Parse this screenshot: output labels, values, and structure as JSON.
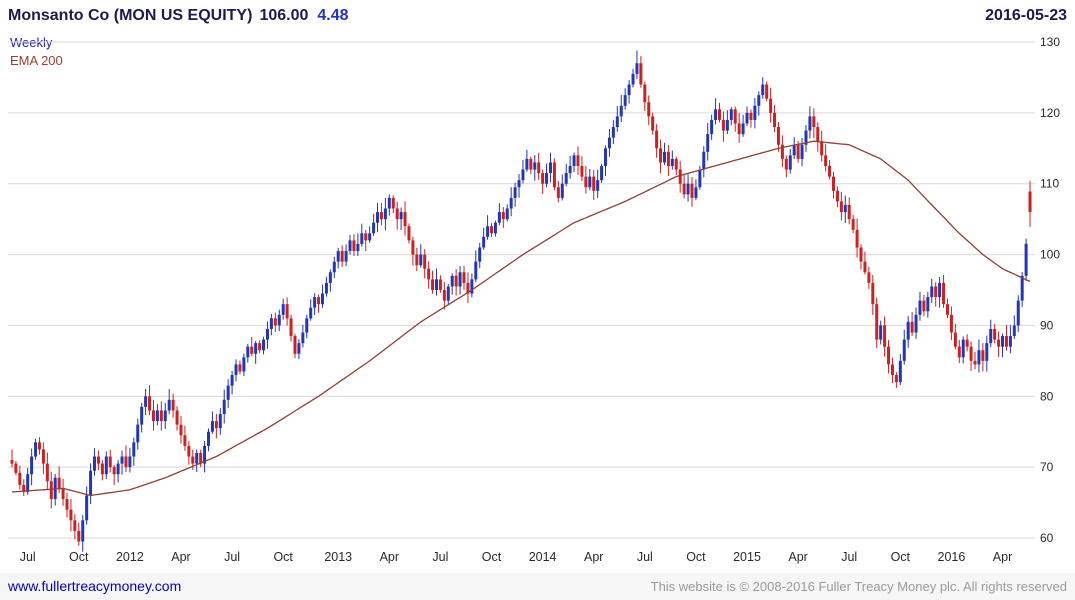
{
  "header": {
    "instrument": "Monsanto Co (MON US EQUITY)",
    "last_price": "106.00",
    "change": "4.48",
    "date": "2016-05-23"
  },
  "legend": {
    "series1": "Weekly",
    "series2": "EMA 200"
  },
  "footer": {
    "link": "www.fullertreacymoney.com",
    "copyright": "This website is © 2008-2016 Fuller Treacy Money plc. All rights reserved"
  },
  "colors": {
    "up": "#2136b8",
    "down": "#cf2020",
    "ema": "#8f3f34",
    "grid": "#d9d9d9",
    "axis_text": "#2a2a2a",
    "title": "#1b1b4f",
    "change": "#2233cc",
    "link": "#0000cc",
    "copyright_text": "#9a9a9a"
  },
  "chart_data": {
    "type": "candlestick",
    "title": "Monsanto Co (MON US EQUITY)",
    "interval": "weekly",
    "as_of": "2016-05-23",
    "last_price": 106.0,
    "change": 4.48,
    "ylim": [
      57.5,
      131
    ],
    "yticks": [
      60,
      70,
      80,
      90,
      100,
      110,
      120,
      130
    ],
    "grid": "horizontal",
    "legend_position": "top-left",
    "xticks": [
      {
        "label": "Jul",
        "week": 4
      },
      {
        "label": "Oct",
        "week": 17
      },
      {
        "label": "2012",
        "week": 30
      },
      {
        "label": "Apr",
        "week": 43
      },
      {
        "label": "Jul",
        "week": 56
      },
      {
        "label": "Oct",
        "week": 69
      },
      {
        "label": "2013",
        "week": 83
      },
      {
        "label": "Apr",
        "week": 96
      },
      {
        "label": "Jul",
        "week": 109
      },
      {
        "label": "Oct",
        "week": 122
      },
      {
        "label": "2014",
        "week": 135
      },
      {
        "label": "Apr",
        "week": 148
      },
      {
        "label": "Jul",
        "week": 161
      },
      {
        "label": "Oct",
        "week": 174
      },
      {
        "label": "2015",
        "week": 187
      },
      {
        "label": "Apr",
        "week": 200
      },
      {
        "label": "Jul",
        "week": 213
      },
      {
        "label": "Oct",
        "week": 226
      },
      {
        "label": "2016",
        "week": 239
      },
      {
        "label": "Apr",
        "week": 252
      }
    ],
    "first_open": 71.0,
    "weekly_closes": [
      70.5,
      69.2,
      67.5,
      66.5,
      69,
      71.5,
      73.5,
      72.5,
      70.5,
      68,
      65.5,
      68.5,
      67,
      65.5,
      64,
      62.5,
      61,
      59.5,
      62.5,
      66,
      69.5,
      71.5,
      70.5,
      69,
      71.5,
      70,
      69,
      70.5,
      71.5,
      70,
      71.5,
      73.5,
      76,
      78.5,
      80,
      78,
      76.5,
      78,
      76.5,
      78,
      79.5,
      78,
      76,
      74.5,
      73,
      71.5,
      70.5,
      72,
      70.5,
      73,
      75,
      76.5,
      75.5,
      77.5,
      79.5,
      81.5,
      83,
      84.5,
      83.5,
      85.5,
      87,
      86,
      87.5,
      86.5,
      88,
      89.5,
      91,
      90,
      91.5,
      93,
      91,
      88.5,
      86,
      87.5,
      89,
      91,
      92.5,
      94,
      93,
      94.5,
      96,
      97.5,
      99,
      100.5,
      99,
      100.5,
      102,
      100.5,
      101.5,
      103,
      102,
      103,
      104.5,
      106,
      105,
      106.5,
      108,
      106.5,
      105,
      106,
      104,
      102,
      100,
      98.5,
      100,
      98,
      96.5,
      95,
      96.5,
      95,
      93.5,
      95.5,
      97,
      95.5,
      97.5,
      96,
      94.5,
      96.5,
      99,
      101,
      102.5,
      104,
      103,
      104.5,
      106,
      105,
      106.5,
      108,
      109.5,
      110.5,
      112,
      113.5,
      112,
      113,
      111.5,
      110,
      111.5,
      113,
      109.5,
      108,
      110,
      111.5,
      112.5,
      114,
      112.5,
      111,
      109.5,
      111,
      109,
      110.5,
      112.5,
      115,
      116.5,
      118,
      119.5,
      121,
      122.5,
      124,
      125.5,
      127,
      124,
      121.5,
      119.5,
      117.5,
      115,
      113,
      114.5,
      112.5,
      113.5,
      112,
      110,
      108.5,
      110,
      108,
      109.5,
      112,
      114.5,
      117,
      119,
      120.5,
      119,
      117.5,
      119,
      120.5,
      118.5,
      117,
      118.5,
      120,
      119,
      121,
      122.5,
      124,
      122,
      120,
      118,
      115.5,
      113.5,
      112,
      114,
      115.5,
      113.5,
      115.5,
      117.5,
      119.5,
      118,
      116,
      114,
      112.5,
      111,
      109,
      107.5,
      106,
      107,
      105,
      103.5,
      101,
      99,
      97.5,
      96,
      93,
      88,
      90,
      87,
      84.5,
      83,
      82,
      85,
      88,
      90.5,
      89,
      91.5,
      93.5,
      92,
      94,
      95.5,
      94,
      96,
      93,
      91.5,
      89,
      87,
      85.5,
      88,
      87,
      85,
      84.5,
      86.5,
      85,
      87.5,
      89.5,
      88,
      87,
      88.5,
      87,
      88.5,
      90,
      93.5,
      97,
      101.52,
      106
    ],
    "special_bars": {
      "17": {
        "low": 58.9
      },
      "159": {
        "high": 128.8
      },
      "225": {
        "low": 81.2
      },
      "259": {
        "open": 108.9,
        "high": 110.4,
        "low": 103.9
      }
    },
    "ema200": {
      "label": "EMA 200",
      "anchors": [
        [
          0,
          66.5
        ],
        [
          13,
          67.0
        ],
        [
          20,
          66.0
        ],
        [
          30,
          66.8
        ],
        [
          39,
          68.5
        ],
        [
          52,
          71.5
        ],
        [
          65,
          75.5
        ],
        [
          78,
          80.0
        ],
        [
          91,
          85.0
        ],
        [
          104,
          90.5
        ],
        [
          117,
          95.0
        ],
        [
          130,
          100.0
        ],
        [
          143,
          104.5
        ],
        [
          156,
          107.5
        ],
        [
          169,
          111.0
        ],
        [
          182,
          113.0
        ],
        [
          195,
          115.0
        ],
        [
          204,
          116.0
        ],
        [
          213,
          115.5
        ],
        [
          221,
          113.5
        ],
        [
          228,
          110.5
        ],
        [
          234,
          107.0
        ],
        [
          241,
          103.0
        ],
        [
          247,
          100.0
        ],
        [
          252,
          98.0
        ],
        [
          259,
          96.2
        ]
      ]
    }
  }
}
